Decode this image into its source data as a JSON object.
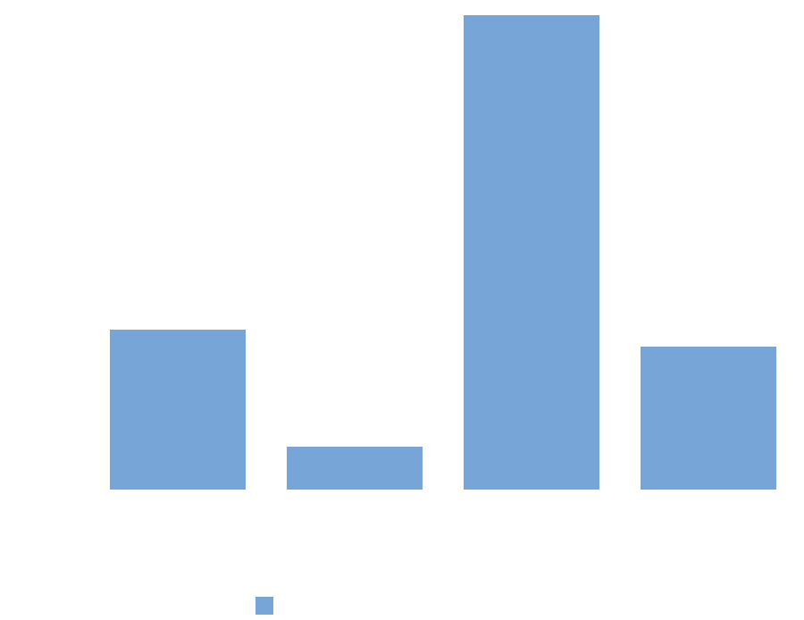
{
  "chart_data": {
    "type": "bar",
    "categories": [
      "",
      "",
      "",
      ""
    ],
    "series": [
      {
        "values": [
          179,
          48,
          531,
          160
        ],
        "color": "#78a5d8"
      }
    ],
    "ylim": [
      0,
      531
    ],
    "grid": false,
    "legend_placement": "bottom"
  }
}
